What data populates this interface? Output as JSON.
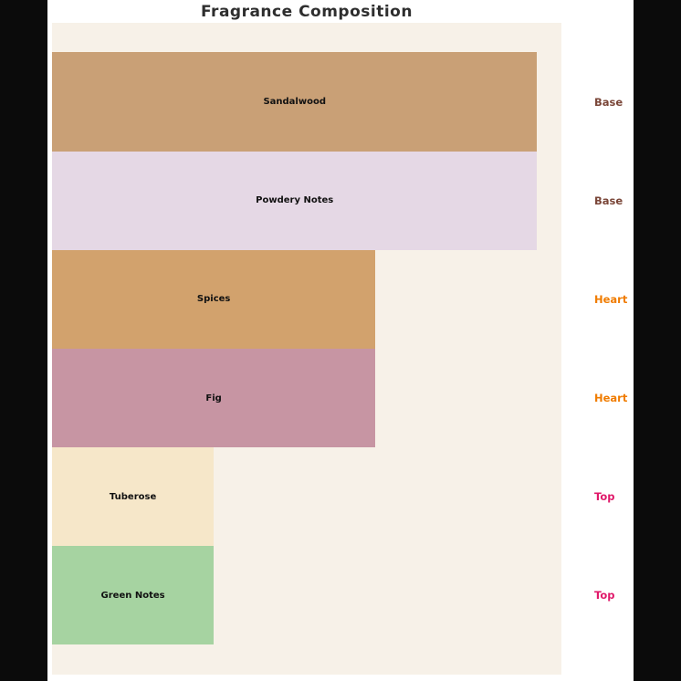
{
  "title": "Fragrance Composition",
  "chart_data": {
    "type": "bar",
    "orientation": "horizontal",
    "title": "Fragrance Composition",
    "categories": [
      "Sandalwood",
      "Powdery Notes",
      "Spices",
      "Fig",
      "Tuberose",
      "Green Notes"
    ],
    "values": [
      30,
      30,
      20,
      20,
      10,
      10
    ],
    "value_unit": "percent-estimated",
    "xlim": [
      0,
      31.5
    ],
    "grid": false,
    "axes_visible": false,
    "bar_colors": [
      "#c9a076",
      "#e5d8e5",
      "#d2a26d",
      "#c795a3",
      "#f6e7c9",
      "#a6d3a1"
    ],
    "bar_label_color": "#111111",
    "stage_labels": [
      {
        "text": "Base",
        "color": "#7a4638"
      },
      {
        "text": "Base",
        "color": "#7a4638"
      },
      {
        "text": "Heart",
        "color": "#f07c00"
      },
      {
        "text": "Heart",
        "color": "#f07c00"
      },
      {
        "text": "Top",
        "color": "#e0196a"
      },
      {
        "text": "Top",
        "color": "#e0196a"
      }
    ],
    "legend_position": "right",
    "plot_background": "#f7f1e8",
    "figure_background": "#ffffff",
    "letterbox_background": "#0b0b0b",
    "title_color": "#2e2e2e"
  }
}
